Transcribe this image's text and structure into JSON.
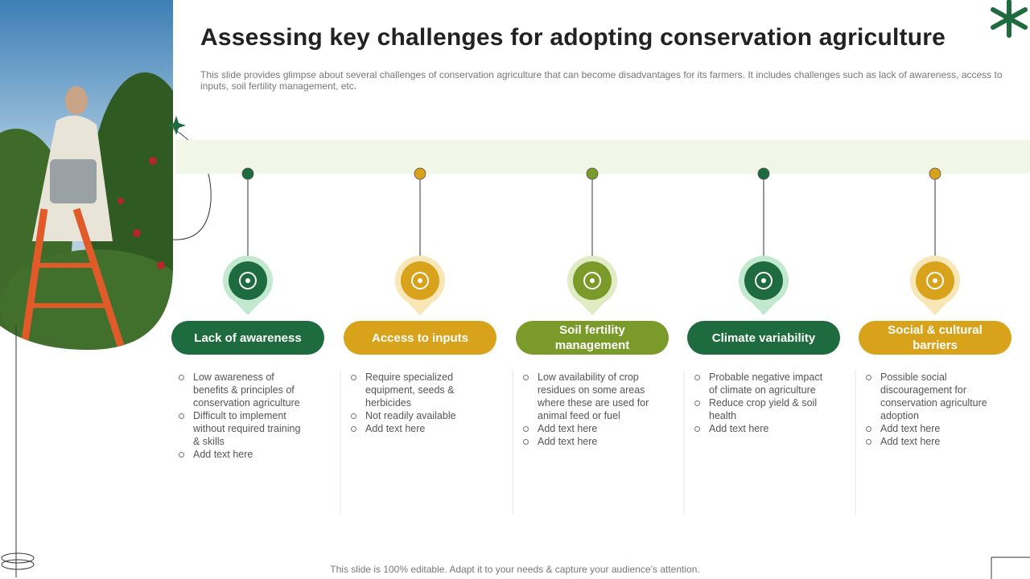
{
  "header": {
    "title": "Assessing key challenges for adopting conservation agriculture",
    "subtitle": "This slide provides glimpse about several challenges of conservation agriculture that can become disadvantages for its farmers. It includes challenges such as lack of awareness, access to inputs, soil fertility management, etc."
  },
  "columns": [
    {
      "title": "Lack of awareness",
      "bullets": [
        "Low awareness of benefits & principles of conservation agriculture",
        "Difficult to implement without required training & skills",
        "Add text here"
      ]
    },
    {
      "title": "Access to inputs",
      "bullets": [
        "Require specialized equipment, seeds & herbicides",
        "Not readily available",
        "Add text here"
      ]
    },
    {
      "title": "Soil fertility management",
      "bullets": [
        "Low availability of crop residues on some areas where these are used for animal feed or fuel",
        "Add text here",
        "Add text here"
      ]
    },
    {
      "title": "Climate variability",
      "bullets": [
        "Probable negative impact of climate on agriculture",
        "Reduce crop yield & soil health",
        "Add text here"
      ]
    },
    {
      "title": "Social & cultural barriers",
      "bullets": [
        "Possible social discouragement for conservation agriculture adoption",
        "Add text here",
        "Add text here"
      ]
    }
  ],
  "footer": "This slide is 100% editable. Adapt it to your needs & capture your audience’s attention."
}
